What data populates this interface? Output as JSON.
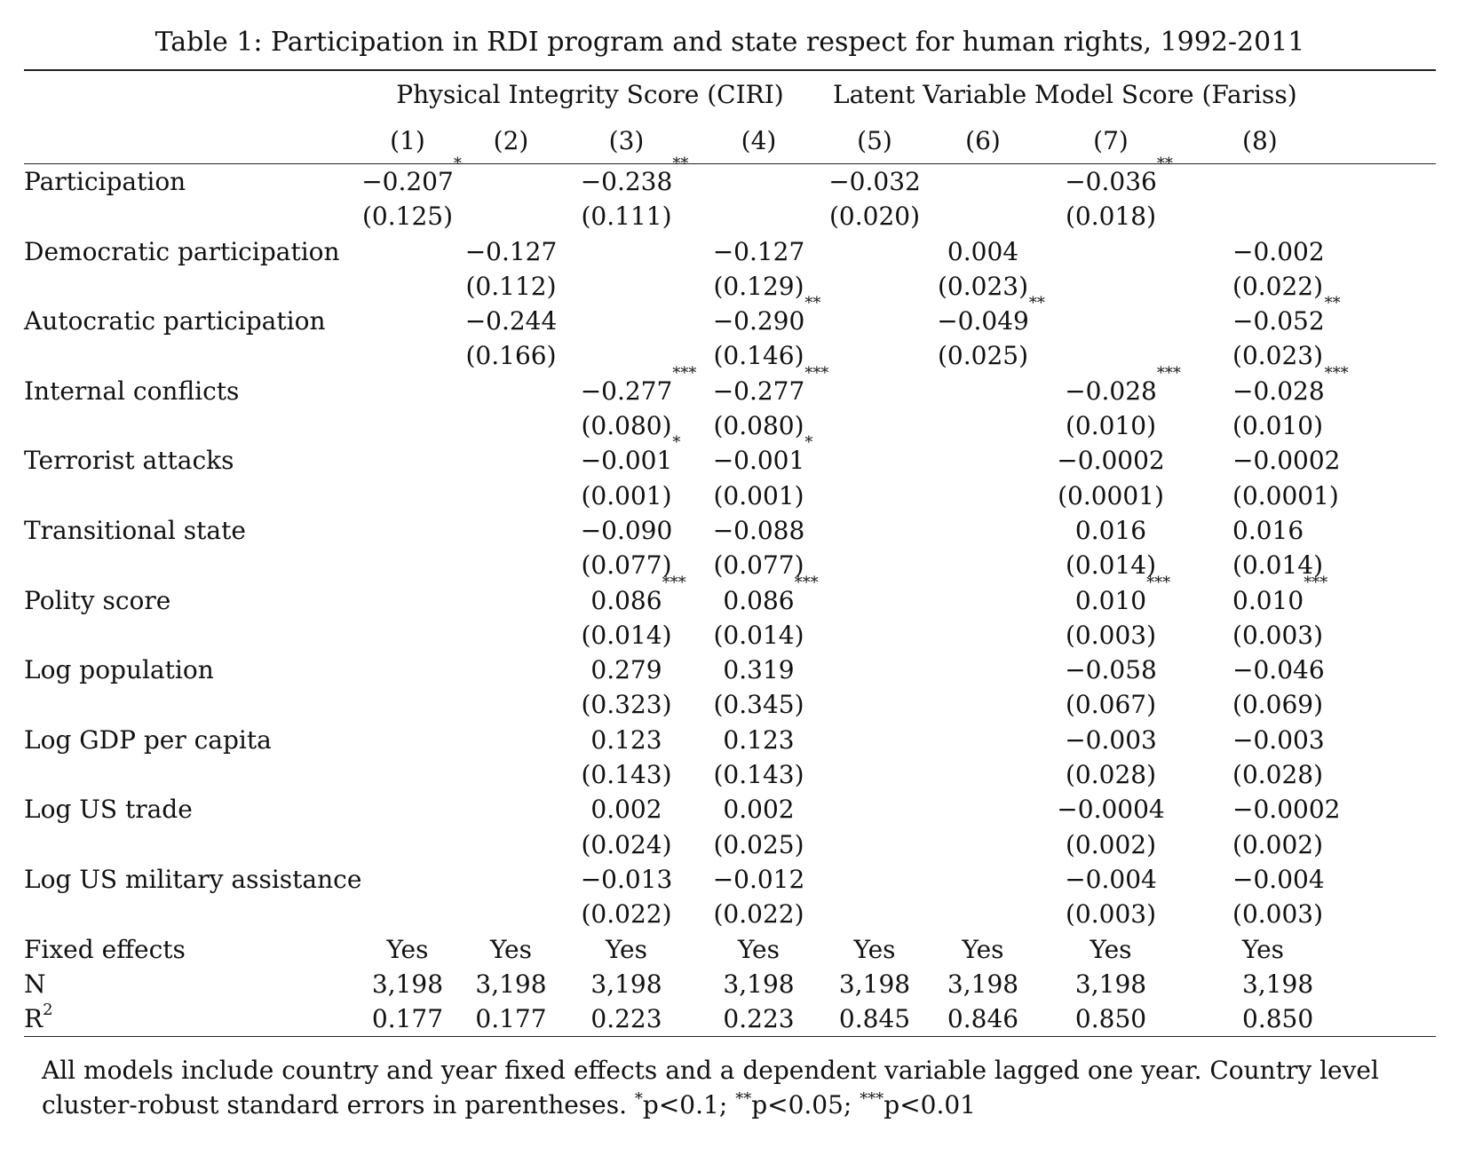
{
  "caption": "Table 1: Participation in RDI program and state respect for human rights, 1992-2011",
  "groups": [
    {
      "label": "Physical Integrity Score (CIRI)"
    },
    {
      "label": "Latent Variable Model Score (Fariss)"
    }
  ],
  "columns": [
    "(1)",
    "(2)",
    "(3)",
    "(4)",
    "(5)",
    "(6)",
    "(7)",
    "(8)"
  ],
  "rows": [
    {
      "label": "Participation",
      "coef": [
        [
          "−0.207",
          "*"
        ],
        [
          "",
          ""
        ],
        [
          "−0.238",
          "**"
        ],
        [
          "",
          ""
        ],
        [
          "−0.032",
          ""
        ],
        [
          "",
          ""
        ],
        [
          "−0.036",
          "**"
        ],
        [
          "",
          ""
        ]
      ],
      "se": [
        "(0.125)",
        "",
        "(0.111)",
        "",
        "(0.020)",
        "",
        "(0.018)",
        ""
      ]
    },
    {
      "label": "Democratic participation",
      "coef": [
        [
          "",
          ""
        ],
        [
          "−0.127",
          ""
        ],
        [
          "",
          ""
        ],
        [
          "−0.127",
          ""
        ],
        [
          "",
          ""
        ],
        [
          "0.004",
          ""
        ],
        [
          "",
          ""
        ],
        [
          "−0.002",
          ""
        ]
      ],
      "se": [
        "",
        "(0.112)",
        "",
        "(0.129)",
        "",
        "(0.023)",
        "",
        "(0.022)"
      ]
    },
    {
      "label": "Autocratic participation",
      "coef": [
        [
          "",
          ""
        ],
        [
          "−0.244",
          ""
        ],
        [
          "",
          ""
        ],
        [
          "−0.290",
          "**"
        ],
        [
          "",
          ""
        ],
        [
          "−0.049",
          "**"
        ],
        [
          "",
          ""
        ],
        [
          "−0.052",
          "**"
        ]
      ],
      "se": [
        "",
        "(0.166)",
        "",
        "(0.146)",
        "",
        "(0.025)",
        "",
        "(0.023)"
      ]
    },
    {
      "label": "Internal conflicts",
      "coef": [
        [
          "",
          ""
        ],
        [
          "",
          ""
        ],
        [
          "−0.277",
          "***"
        ],
        [
          "−0.277",
          "***"
        ],
        [
          "",
          ""
        ],
        [
          "",
          ""
        ],
        [
          "−0.028",
          "***"
        ],
        [
          "−0.028",
          "***"
        ]
      ],
      "se": [
        "",
        "",
        "(0.080)",
        "(0.080)",
        "",
        "",
        "(0.010)",
        "(0.010)"
      ]
    },
    {
      "label": "Terrorist attacks",
      "coef": [
        [
          "",
          ""
        ],
        [
          "",
          ""
        ],
        [
          "−0.001",
          "*"
        ],
        [
          "−0.001",
          "*"
        ],
        [
          "",
          ""
        ],
        [
          "",
          ""
        ],
        [
          "−0.0002",
          ""
        ],
        [
          "−0.0002",
          ""
        ]
      ],
      "se": [
        "",
        "",
        "(0.001)",
        "(0.001)",
        "",
        "",
        "(0.0001)",
        "(0.0001)"
      ]
    },
    {
      "label": "Transitional state",
      "coef": [
        [
          "",
          ""
        ],
        [
          "",
          ""
        ],
        [
          "−0.090",
          ""
        ],
        [
          "−0.088",
          ""
        ],
        [
          "",
          ""
        ],
        [
          "",
          ""
        ],
        [
          "0.016",
          ""
        ],
        [
          "0.016",
          ""
        ]
      ],
      "se": [
        "",
        "",
        "(0.077)",
        "(0.077)",
        "",
        "",
        "(0.014)",
        "(0.014)"
      ]
    },
    {
      "label": "Polity score",
      "coef": [
        [
          "",
          ""
        ],
        [
          "",
          ""
        ],
        [
          "0.086",
          "***"
        ],
        [
          "0.086",
          "***"
        ],
        [
          "",
          ""
        ],
        [
          "",
          ""
        ],
        [
          "0.010",
          "***"
        ],
        [
          "0.010",
          "***"
        ]
      ],
      "se": [
        "",
        "",
        "(0.014)",
        "(0.014)",
        "",
        "",
        "(0.003)",
        "(0.003)"
      ]
    },
    {
      "label": "Log population",
      "coef": [
        [
          "",
          ""
        ],
        [
          "",
          ""
        ],
        [
          "0.279",
          ""
        ],
        [
          "0.319",
          ""
        ],
        [
          "",
          ""
        ],
        [
          "",
          ""
        ],
        [
          "−0.058",
          ""
        ],
        [
          "−0.046",
          ""
        ]
      ],
      "se": [
        "",
        "",
        "(0.323)",
        "(0.345)",
        "",
        "",
        "(0.067)",
        "(0.069)"
      ]
    },
    {
      "label": "Log GDP per capita",
      "coef": [
        [
          "",
          ""
        ],
        [
          "",
          ""
        ],
        [
          "0.123",
          ""
        ],
        [
          "0.123",
          ""
        ],
        [
          "",
          ""
        ],
        [
          "",
          ""
        ],
        [
          "−0.003",
          ""
        ],
        [
          "−0.003",
          ""
        ]
      ],
      "se": [
        "",
        "",
        "(0.143)",
        "(0.143)",
        "",
        "",
        "(0.028)",
        "(0.028)"
      ]
    },
    {
      "label": "Log US trade",
      "coef": [
        [
          "",
          ""
        ],
        [
          "",
          ""
        ],
        [
          "0.002",
          ""
        ],
        [
          "0.002",
          ""
        ],
        [
          "",
          ""
        ],
        [
          "",
          ""
        ],
        [
          "−0.0004",
          ""
        ],
        [
          "−0.0002",
          ""
        ]
      ],
      "se": [
        "",
        "",
        "(0.024)",
        "(0.025)",
        "",
        "",
        "(0.002)",
        "(0.002)"
      ]
    },
    {
      "label": "Log US military assistance",
      "coef": [
        [
          "",
          ""
        ],
        [
          "",
          ""
        ],
        [
          "−0.013",
          ""
        ],
        [
          "−0.012",
          ""
        ],
        [
          "",
          ""
        ],
        [
          "",
          ""
        ],
        [
          "−0.004",
          ""
        ],
        [
          "−0.004",
          ""
        ]
      ],
      "se": [
        "",
        "",
        "(0.022)",
        "(0.022)",
        "",
        "",
        "(0.003)",
        "(0.003)"
      ]
    }
  ],
  "stats": [
    {
      "label": "Fixed effects",
      "values": [
        "Yes",
        "Yes",
        "Yes",
        "Yes",
        "Yes",
        "Yes",
        "Yes",
        "Yes"
      ]
    },
    {
      "label": "N",
      "values": [
        "3,198",
        "3,198",
        "3,198",
        "3,198",
        "3,198",
        "3,198",
        "3,198",
        "3,198"
      ]
    },
    {
      "label": "R",
      "sup": "2",
      "values": [
        "0.177",
        "0.177",
        "0.223",
        "0.223",
        "0.845",
        "0.846",
        "0.850",
        "0.850"
      ]
    }
  ],
  "notes": {
    "main": "All models include country and year fixed effects and a dependent variable lagged one year. Country level cluster-robust standard errors in parentheses.",
    "sig1_stars": "*",
    "sig1": "p<0.1;",
    "sig2_stars": "**",
    "sig2": "p<0.05;",
    "sig3_stars": "***",
    "sig3": "p<0.01"
  }
}
